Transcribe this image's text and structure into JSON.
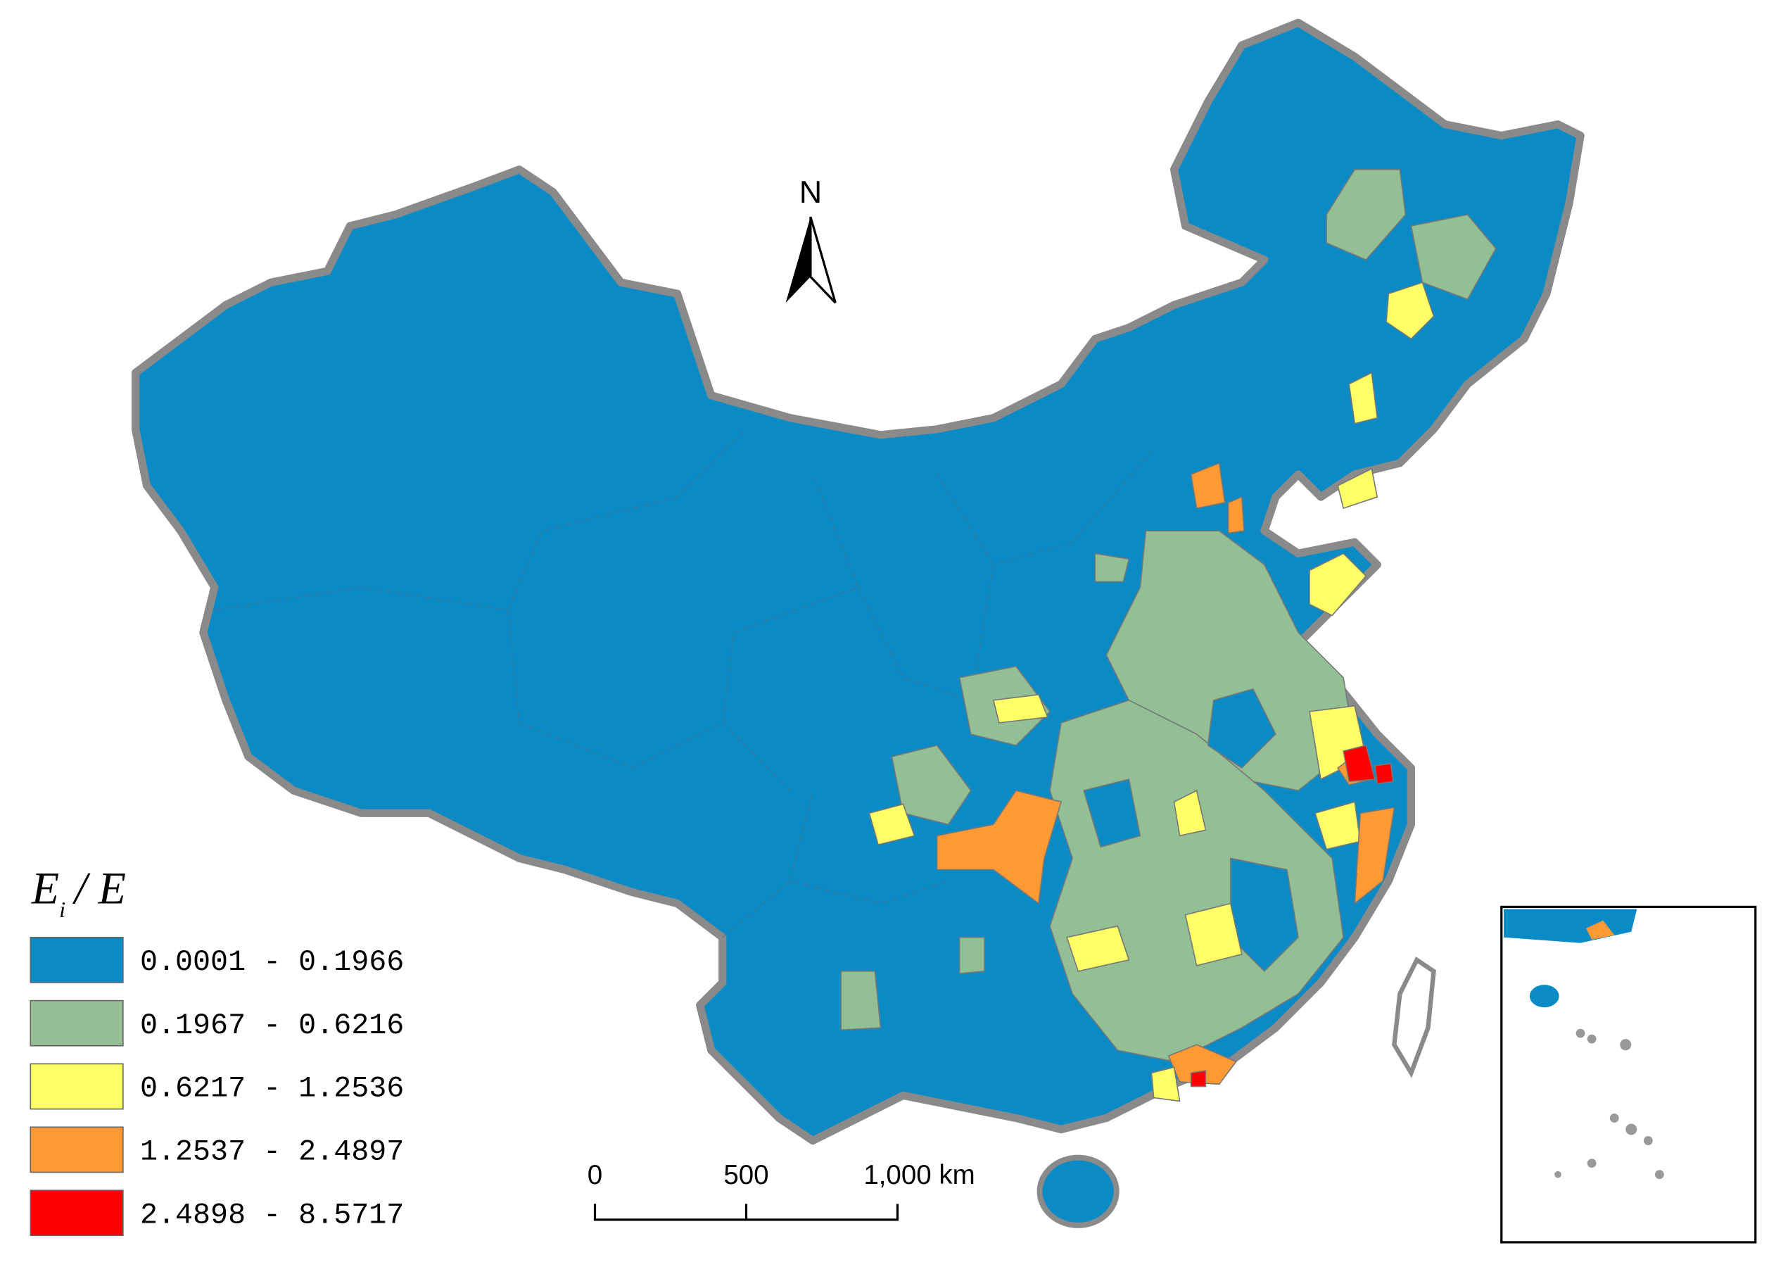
{
  "map": {
    "north_label": "N",
    "legend": {
      "title": {
        "symbol": "E",
        "subscript": "i",
        "suffix": "/ E"
      },
      "classes": [
        {
          "label": "0.0001 - 0.1966",
          "color": "#0a8bc6"
        },
        {
          "label": "0.1967 - 0.6216",
          "color": "#93bf95"
        },
        {
          "label": "0.6217 - 1.2536",
          "color": "#ffff66"
        },
        {
          "label": "1.2537 - 2.4897",
          "color": "#ff9933"
        },
        {
          "label": "2.4898 - 8.5717",
          "color": "#ff0000"
        }
      ]
    },
    "scale_bar": {
      "ticks": [
        0,
        500,
        {
          "value": 1000,
          "label": "1,000 km"
        }
      ]
    }
  }
}
